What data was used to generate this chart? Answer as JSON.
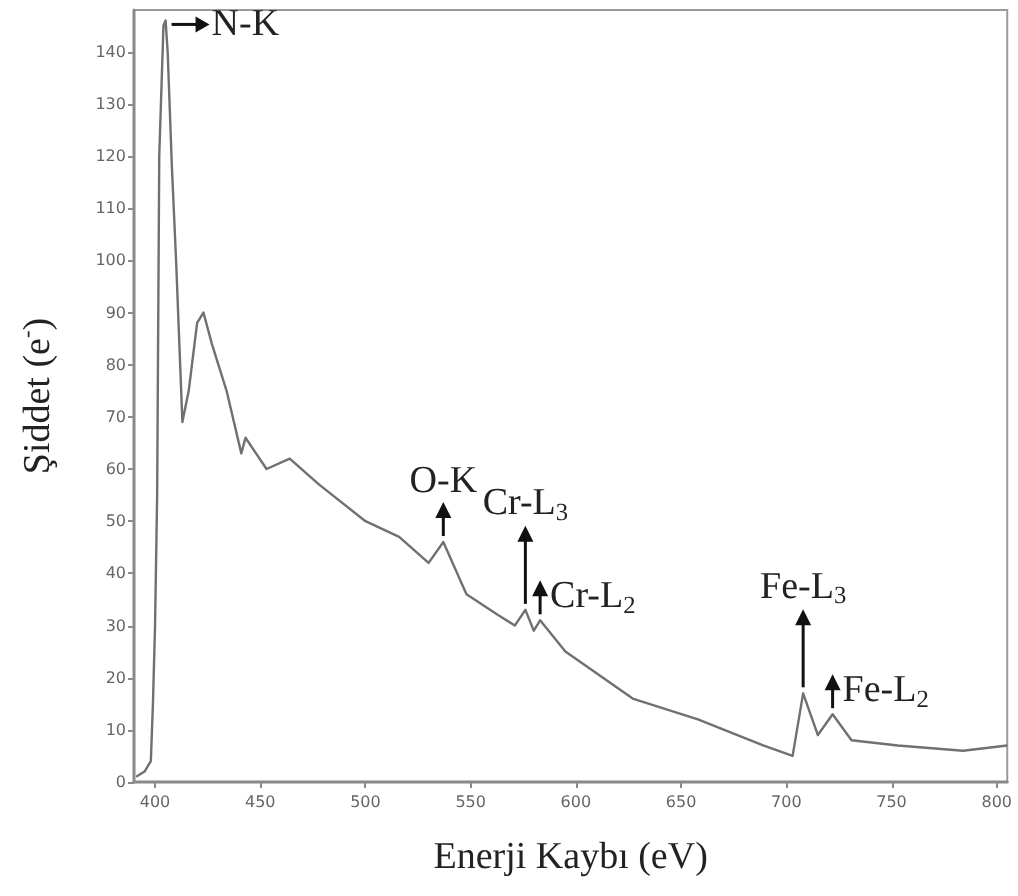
{
  "chart_data": {
    "type": "line",
    "xlabel": "Enerji Kaybı (eV)",
    "ylabel": "Şiddet (e$^{-}$)",
    "xlim": [
      390,
      805
    ],
    "ylim": [
      0,
      148
    ],
    "xticks": [
      400,
      450,
      500,
      550,
      600,
      650,
      700,
      750,
      800
    ],
    "yticks": [
      0,
      10,
      20,
      30,
      40,
      50,
      60,
      70,
      80,
      90,
      100,
      110,
      120,
      130,
      140
    ],
    "grid": false,
    "marker": "none",
    "line_style": "solid",
    "series": [
      {
        "color": "#707070",
        "x": [
          391,
          395,
          398,
          399,
          400,
          401,
          402,
          404,
          405,
          406,
          408,
          410,
          413,
          416,
          420,
          423,
          427,
          434,
          441,
          443,
          453,
          464,
          478,
          500,
          516,
          530,
          537,
          548,
          563,
          571,
          576,
          580,
          583,
          595,
          627,
          658,
          689,
          703,
          708,
          715,
          722,
          731,
          753,
          784,
          805
        ],
        "values": [
          1,
          2,
          4,
          15,
          30,
          55,
          120,
          145,
          146,
          140,
          118,
          100,
          69,
          75,
          88,
          90,
          84,
          75,
          63,
          66,
          60,
          62,
          57,
          50,
          47,
          42,
          46,
          36,
          32,
          30,
          33,
          29,
          31,
          25,
          16,
          12,
          7,
          5,
          17,
          9,
          13,
          8,
          7,
          6,
          7
        ]
      }
    ],
    "annotations": [
      {
        "text": "N-K",
        "x": 405,
        "y": 146
      },
      {
        "text": "O-K",
        "x": 537,
        "y": 46
      },
      {
        "text": "Cr-L$_{3}$",
        "x": 576,
        "y": 33
      },
      {
        "text": "Cr-L$_{2}$",
        "x": 583,
        "y": 31
      },
      {
        "text": "Fe-L$_{3}$",
        "x": 708,
        "y": 17
      },
      {
        "text": "Fe-L$_{2}$",
        "x": 722,
        "y": 13
      }
    ]
  }
}
